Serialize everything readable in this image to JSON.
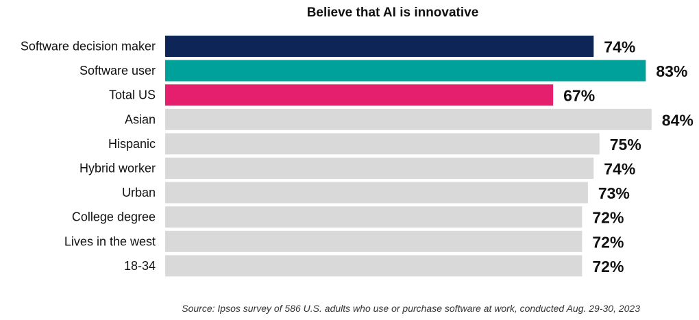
{
  "chart_data": {
    "type": "bar",
    "orientation": "horizontal",
    "title": "Believe that AI is innovative",
    "categories": [
      "Software decision maker",
      "Software user",
      "Total US",
      "Asian",
      "Hispanic",
      "Hybrid worker",
      "Urban",
      "College degree",
      "Lives in the west",
      "18-34"
    ],
    "values": [
      74,
      83,
      67,
      84,
      75,
      74,
      73,
      72,
      72,
      72
    ],
    "value_labels": [
      "74%",
      "83%",
      "67%",
      "84%",
      "75%",
      "74%",
      "73%",
      "72%",
      "72%",
      "72%"
    ],
    "bar_colors": [
      "#0d2657",
      "#00a19a",
      "#e61e6e",
      "#d9d9d9",
      "#d9d9d9",
      "#d9d9d9",
      "#d9d9d9",
      "#d9d9d9",
      "#d9d9d9",
      "#d9d9d9"
    ],
    "value_unit": "%",
    "xlim": [
      0,
      100
    ],
    "grid": false,
    "legend": "none",
    "footer": "Source: Ipsos survey of 586 U.S. adults who use or purchase software at work, conducted Aug. 29-30, 2023"
  }
}
